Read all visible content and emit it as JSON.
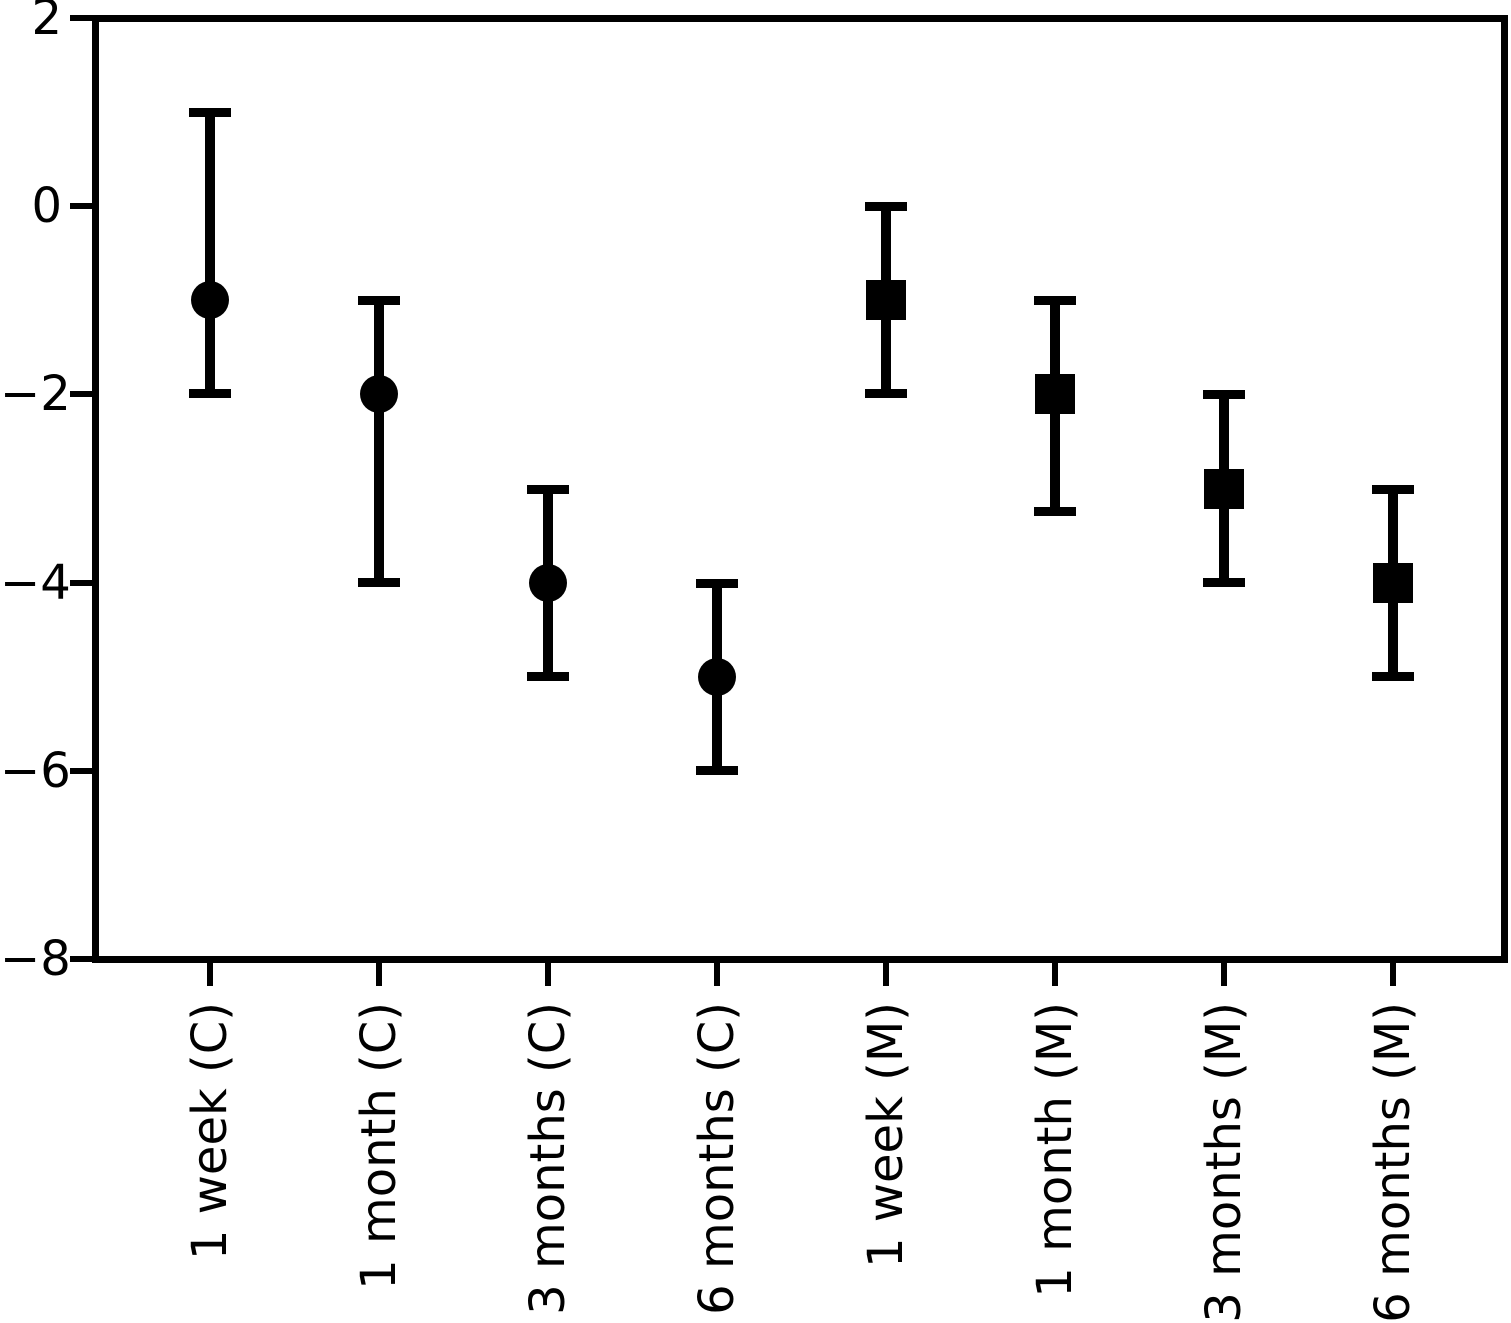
{
  "figure": {
    "background_color": "#ffffff",
    "ink_color": "#000000",
    "title": ""
  },
  "chart_data": {
    "type": "scatter",
    "subtype": "errorbar",
    "title": "",
    "xlabel": "",
    "ylabel": "",
    "ylim": [
      -8,
      2
    ],
    "grid": false,
    "legend": "none",
    "yticks": [
      2,
      0,
      -2,
      -4,
      -6,
      -8
    ],
    "ytick_labels": [
      "2",
      "0",
      "−2",
      "−4",
      "−6",
      "−8"
    ],
    "categories": [
      "1 week (C)",
      "1 month (C)",
      "3 months (C)",
      "6 months (C)",
      "1 week (M)",
      "1 month (M)",
      "3 months (M)",
      "6 months (M)"
    ],
    "marker_legend": {
      "C": "circle",
      "M": "square"
    },
    "points": [
      {
        "label": "1 week (C)",
        "group": "C",
        "marker": "circle",
        "value": -1,
        "upper": 1,
        "lower": -2
      },
      {
        "label": "1 month (C)",
        "group": "C",
        "marker": "circle",
        "value": -2,
        "upper": -1,
        "lower": -4
      },
      {
        "label": "3 months (C)",
        "group": "C",
        "marker": "circle",
        "value": -4,
        "upper": -3,
        "lower": -5
      },
      {
        "label": "6 months (C)",
        "group": "C",
        "marker": "circle",
        "value": -5,
        "upper": -4,
        "lower": -6
      },
      {
        "label": "1 week (M)",
        "group": "M",
        "marker": "square",
        "value": -1,
        "upper": 0,
        "lower": -2
      },
      {
        "label": "1 month (M)",
        "group": "M",
        "marker": "square",
        "value": -2,
        "upper": -1,
        "lower": -3.25
      },
      {
        "label": "3 months (M)",
        "group": "M",
        "marker": "square",
        "value": -3,
        "upper": -2,
        "lower": -4
      },
      {
        "label": "6 months (M)",
        "group": "M",
        "marker": "square",
        "value": -4,
        "upper": -3,
        "lower": -5
      }
    ],
    "series": [
      {
        "name": "C",
        "marker": "circle",
        "categories": [
          "1 week",
          "1 month",
          "3 months",
          "6 months"
        ],
        "values": [
          -1,
          -2,
          -4,
          -5
        ],
        "upper": [
          1,
          -1,
          -3,
          -4
        ],
        "lower": [
          -2,
          -4,
          -5,
          -6
        ]
      },
      {
        "name": "M",
        "marker": "square",
        "categories": [
          "1 week",
          "1 month",
          "3 months",
          "6 months"
        ],
        "values": [
          -1,
          -2,
          -3,
          -4
        ],
        "upper": [
          0,
          -1,
          -2,
          -3
        ],
        "lower": [
          -2,
          -3.25,
          -4,
          -5
        ]
      }
    ]
  }
}
